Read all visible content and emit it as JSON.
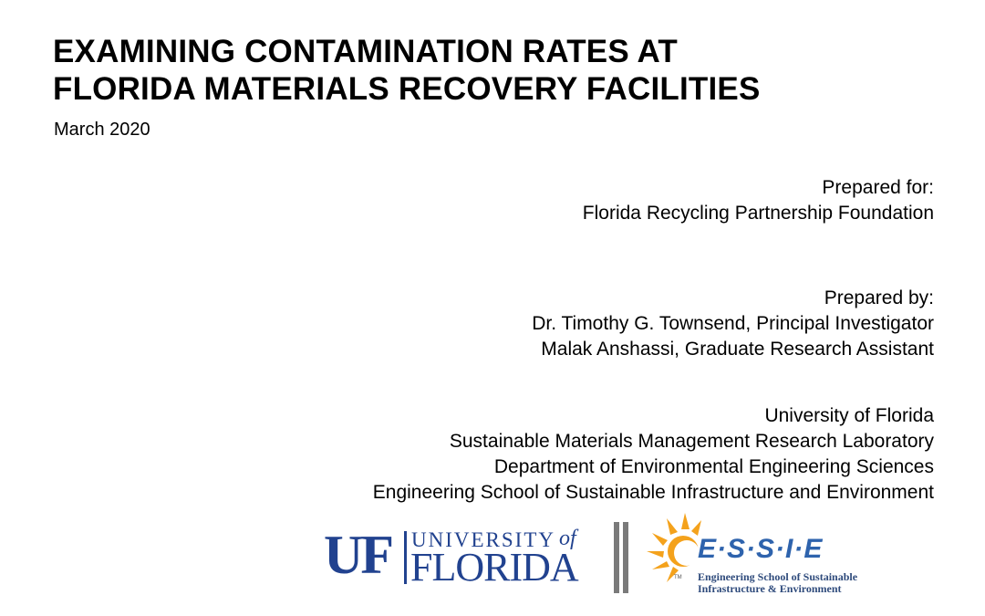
{
  "title": {
    "line1": "EXAMINING CONTAMINATION RATES AT",
    "line2": "FLORIDA MATERIALS RECOVERY FACILITIES"
  },
  "date": "March 2020",
  "prepared_for": {
    "heading": "Prepared for:",
    "organization": "Florida Recycling Partnership Foundation"
  },
  "prepared_by": {
    "heading": "Prepared by:",
    "authors": [
      "Dr. Timothy G. Townsend, Principal Investigator",
      "Malak Anshassi, Graduate Research Assistant"
    ]
  },
  "institution": {
    "lines": [
      "University of Florida",
      "Sustainable Materials Management Research Laboratory",
      "Department of Environmental Engineering Sciences",
      "Engineering School of Sustainable Infrastructure and Environment"
    ]
  },
  "logos": {
    "uf": {
      "mark": "UF",
      "university": "UNIVERSITY",
      "of": "of",
      "florida": "FLORIDA",
      "color": "#21428f"
    },
    "essie": {
      "letters": "E·S·S·I·E",
      "tm": "TM",
      "caption_line1": "Engineering School of Sustainable",
      "caption_line2": "Infrastructure & Environment",
      "color": "#2e63ad",
      "sun_color": "#f4a21c"
    }
  }
}
